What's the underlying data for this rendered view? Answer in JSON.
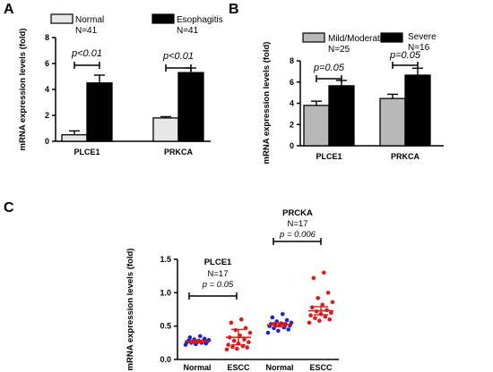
{
  "colors": {
    "normal": "#e8e8e8",
    "esophagitis": "#000000",
    "mild": "#b8b8b8",
    "severe": "#000000",
    "dot_normal": "#2222cc",
    "dot_escc": "#e01818",
    "mean_line": "#e01818"
  },
  "chart_data": [
    {
      "panel": "A",
      "type": "bar",
      "ylabel": "mRNA expression levels (fold)",
      "ylim": [
        0,
        8
      ],
      "yticks": [
        "0",
        "2",
        "4",
        "6",
        "8"
      ],
      "categories": [
        "PLCE1",
        "PRKCA"
      ],
      "series": [
        {
          "name": "Normal",
          "n_label": "N=41",
          "values": [
            0.5,
            1.8
          ],
          "errors": [
            0.3,
            0.1
          ]
        },
        {
          "name": "Esophagitis",
          "n_label": "N=41",
          "values": [
            4.5,
            5.3
          ],
          "errors": [
            0.6,
            0.35
          ]
        }
      ],
      "annotations": [
        "p<0.01",
        "p<0.01"
      ],
      "legend": "top"
    },
    {
      "panel": "B",
      "type": "bar",
      "ylabel": "mRNA expression levels (fold)",
      "ylim": [
        0,
        8
      ],
      "yticks": [
        "0",
        "2",
        "4",
        "6",
        "8"
      ],
      "categories": [
        "PLCE1",
        "PRKCA"
      ],
      "series": [
        {
          "name": "Mild/Moderate",
          "n_label": "N=25",
          "values": [
            3.8,
            4.45
          ],
          "errors": [
            0.4,
            0.4
          ]
        },
        {
          "name": "Severe",
          "n_label": "N=16",
          "values": [
            5.65,
            6.65
          ],
          "errors": [
            0.5,
            0.65
          ]
        }
      ],
      "annotations": [
        "p=0.05",
        "p=0.05"
      ],
      "legend": "top"
    },
    {
      "panel": "C",
      "type": "scatter",
      "ylabel": "mRNA expression levels (fold)",
      "ylim": [
        0,
        1.5
      ],
      "yticks": [
        "0.0",
        "0.5",
        "1.0",
        "1.5"
      ],
      "categories": [
        "Normal",
        "ESCC",
        "Normal",
        "ESCC"
      ],
      "groups": [
        {
          "category": "Normal",
          "color": "dot_normal",
          "mean": 0.27,
          "sem": [
            0.25,
            0.29
          ],
          "points": [
            0.22,
            0.23,
            0.24,
            0.25,
            0.25,
            0.26,
            0.26,
            0.27,
            0.27,
            0.27,
            0.28,
            0.28,
            0.29,
            0.3,
            0.31,
            0.33,
            0.35
          ]
        },
        {
          "category": "ESCC",
          "color": "dot_escc",
          "mean": 0.33,
          "sem": [
            0.22,
            0.45
          ],
          "points": [
            0.15,
            0.16,
            0.18,
            0.19,
            0.2,
            0.22,
            0.24,
            0.26,
            0.28,
            0.3,
            0.33,
            0.36,
            0.4,
            0.44,
            0.47,
            0.55,
            0.6
          ]
        },
        {
          "category": "Normal",
          "color": "dot_normal",
          "mean": 0.52,
          "sem": [
            0.49,
            0.55
          ],
          "points": [
            0.4,
            0.43,
            0.45,
            0.47,
            0.48,
            0.5,
            0.51,
            0.51,
            0.52,
            0.53,
            0.53,
            0.54,
            0.55,
            0.57,
            0.59,
            0.63,
            0.68
          ]
        },
        {
          "category": "ESCC",
          "color": "dot_escc",
          "mean": 0.73,
          "sem": [
            0.67,
            0.79
          ],
          "points": [
            0.55,
            0.58,
            0.6,
            0.62,
            0.64,
            0.66,
            0.68,
            0.7,
            0.72,
            0.74,
            0.78,
            0.82,
            0.86,
            0.92,
            1.0,
            1.22,
            1.3
          ]
        }
      ],
      "annotations": [
        {
          "gene": "PLCE1",
          "n_label": "N=17",
          "p": "p = 0.05"
        },
        {
          "gene": "PRCKA",
          "n_label": "N=17",
          "p": "p = 0.006"
        }
      ]
    }
  ]
}
